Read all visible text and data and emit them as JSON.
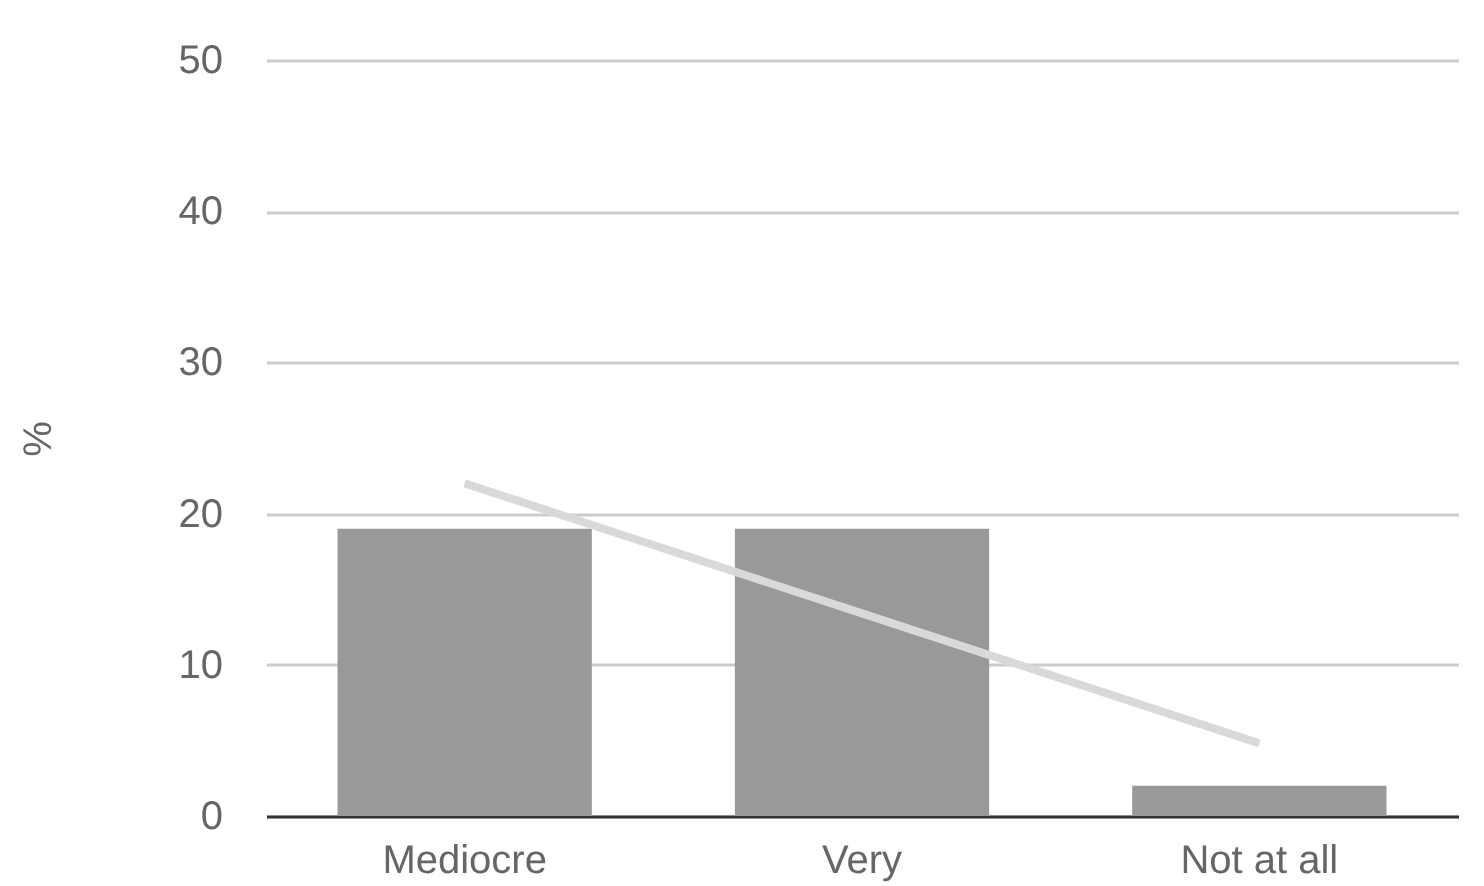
{
  "chart_data": {
    "type": "bar",
    "ylabel": "%",
    "categories": [
      "Mediocre",
      "Very",
      "Not at all"
    ],
    "series": [
      {
        "color": "#999999",
        "values": [
          19,
          19,
          2
        ]
      },
      {
        "type": "line",
        "color": "#d9d9d9",
        "values": [
          22,
          13.4,
          4.8
        ]
      }
    ],
    "ylim": [
      0,
      50
    ],
    "yticks": [
      0,
      10,
      20,
      30,
      40,
      50
    ],
    "grid": "y"
  }
}
